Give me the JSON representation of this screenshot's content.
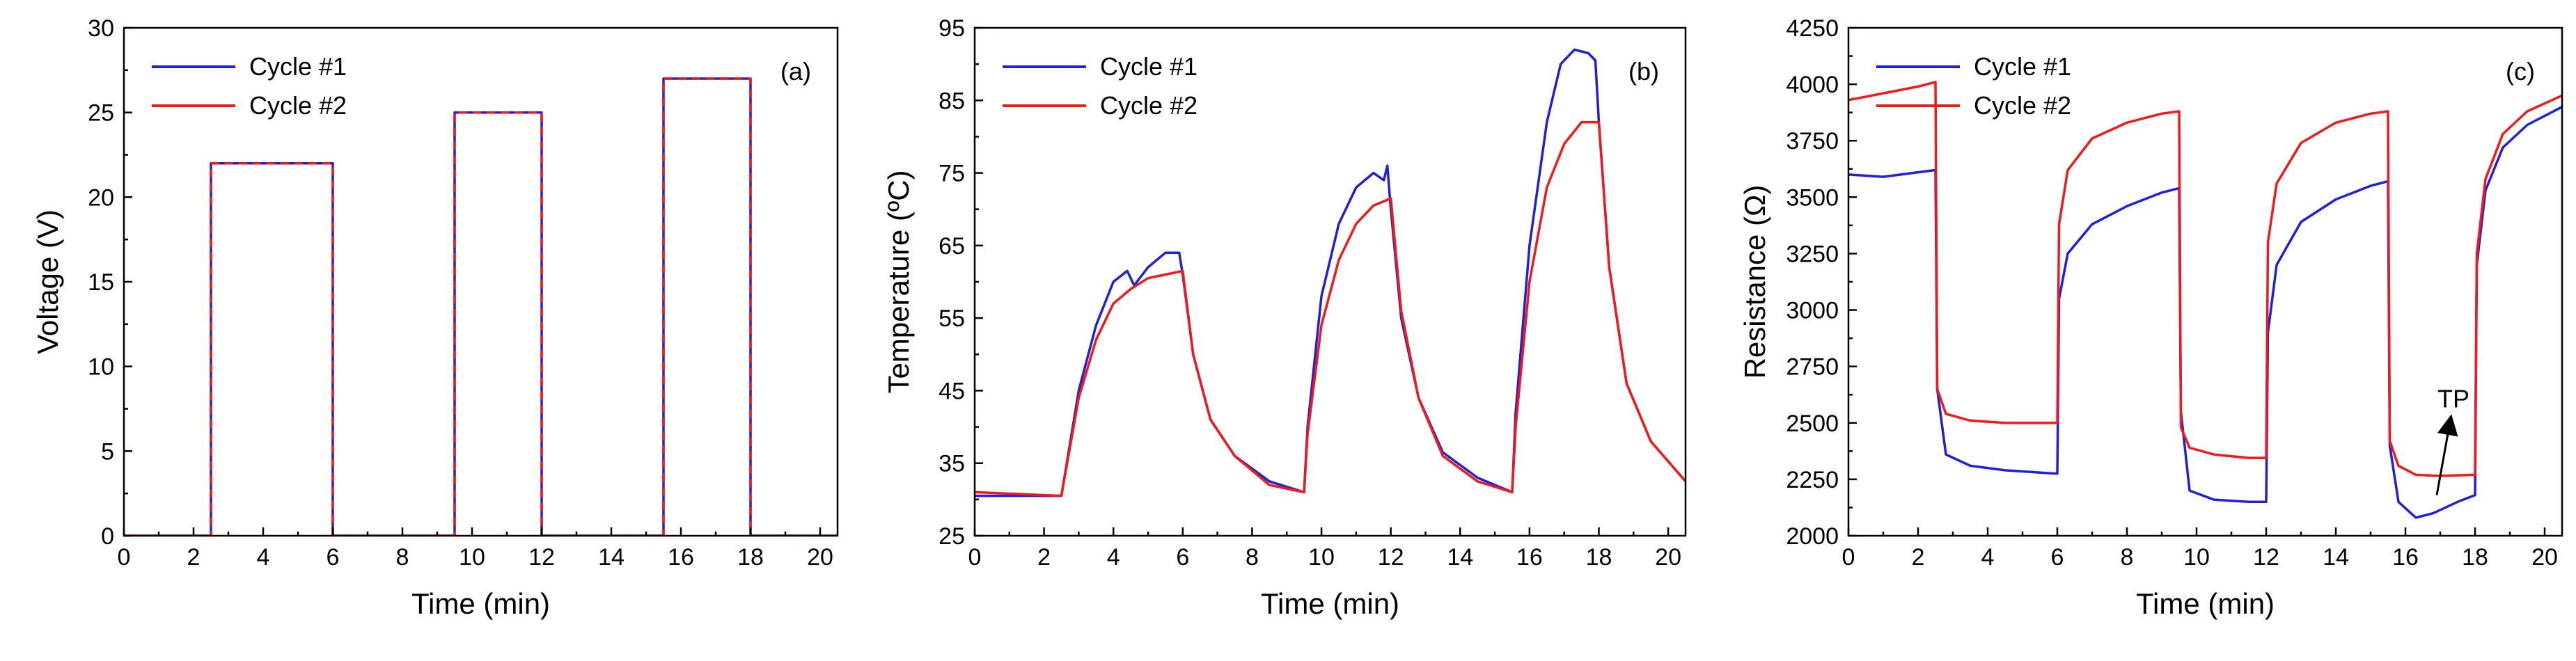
{
  "colors": {
    "cycle1": "#1f1fe0",
    "cycle2": "#f01a1a"
  },
  "chart_data": [
    {
      "id": "a",
      "type": "line",
      "panel_label": "(a)",
      "xlabel": "Time (min)",
      "ylabel": "Voltage (V)",
      "xlim": [
        0,
        20.5
      ],
      "ylim": [
        0,
        30
      ],
      "xticks": [
        0,
        2,
        4,
        6,
        8,
        10,
        12,
        14,
        16,
        18,
        20
      ],
      "yticks": [
        0,
        5,
        10,
        15,
        20,
        25,
        30
      ],
      "legend_position": "top-left",
      "series": [
        {
          "name": "Cycle #1",
          "color": "#1f1fe0",
          "dashed": false,
          "x": [
            0,
            2.5,
            2.5,
            6,
            6,
            9.5,
            9.5,
            12,
            12,
            15.5,
            15.5,
            18,
            18,
            20.5
          ],
          "y": [
            0,
            0,
            22,
            22,
            0,
            0,
            25,
            25,
            0,
            0,
            27,
            27,
            0,
            0
          ]
        },
        {
          "name": "Cycle #2",
          "color": "#f01a1a",
          "dashed": true,
          "x": [
            0,
            2.5,
            2.5,
            6,
            6,
            9.5,
            9.5,
            12,
            12,
            15.5,
            15.5,
            18,
            18,
            20.5
          ],
          "y": [
            0,
            0,
            22,
            22,
            0,
            0,
            25,
            25,
            0,
            0,
            27,
            27,
            0,
            0
          ]
        }
      ]
    },
    {
      "id": "b",
      "type": "line",
      "panel_label": "(b)",
      "xlabel": "Time (min)",
      "ylabel": "Temperature (ºC)",
      "xlim": [
        0,
        20.5
      ],
      "ylim": [
        25,
        95
      ],
      "xticks": [
        0,
        2,
        4,
        6,
        8,
        10,
        12,
        14,
        16,
        18,
        20
      ],
      "yticks": [
        25,
        35,
        45,
        55,
        65,
        75,
        85,
        95
      ],
      "legend_position": "top-left",
      "series": [
        {
          "name": "Cycle #1",
          "color": "#1f1fe0",
          "x": [
            0,
            2.5,
            3.0,
            3.5,
            4.0,
            4.4,
            4.6,
            5.0,
            5.5,
            5.9,
            6.0,
            6.3,
            6.8,
            7.5,
            8.5,
            9.5,
            9.6,
            10.0,
            10.5,
            11.0,
            11.5,
            11.8,
            11.9,
            12.0,
            12.3,
            12.8,
            13.5,
            14.5,
            15.5,
            15.6,
            16.0,
            16.5,
            16.9,
            17.3,
            17.7,
            17.9,
            18.0,
            18.3,
            18.8,
            19.5,
            20.5
          ],
          "y": [
            30.5,
            30.5,
            45,
            54,
            60,
            61.5,
            59.5,
            62,
            64,
            64,
            61,
            50,
            41,
            36,
            32.5,
            31,
            40,
            58,
            68,
            73,
            75,
            74,
            76,
            70,
            55,
            44,
            36.5,
            33,
            31,
            42,
            65,
            82,
            90,
            92,
            91.5,
            90.5,
            82,
            62,
            46,
            38,
            32.5
          ]
        },
        {
          "name": "Cycle #2",
          "color": "#f01a1a",
          "x": [
            0,
            2.5,
            3.0,
            3.5,
            4.0,
            4.5,
            5.0,
            5.5,
            6.0,
            6.3,
            6.8,
            7.5,
            8.5,
            9.5,
            9.6,
            10.0,
            10.5,
            11.0,
            11.5,
            12.0,
            12.3,
            12.8,
            13.5,
            14.5,
            15.5,
            15.6,
            16.0,
            16.5,
            17.0,
            17.5,
            18.0,
            18.3,
            18.8,
            19.5,
            20.5
          ],
          "y": [
            31,
            30.5,
            44,
            52,
            57,
            59,
            60.5,
            61,
            61.5,
            50,
            41,
            36,
            32,
            31,
            39,
            54,
            63,
            68,
            70.5,
            71.5,
            56,
            44,
            36,
            32.5,
            31,
            40,
            60,
            73,
            79,
            82,
            82,
            62,
            46,
            38,
            32.5
          ]
        }
      ]
    },
    {
      "id": "c",
      "type": "line",
      "panel_label": "(c)",
      "xlabel": "Time (min)",
      "ylabel": "Resistance (Ω)",
      "xlim": [
        0,
        20.5
      ],
      "ylim": [
        2000,
        4250
      ],
      "xticks": [
        0,
        2,
        4,
        6,
        8,
        10,
        12,
        14,
        16,
        18,
        20
      ],
      "yticks": [
        2000,
        2250,
        2500,
        2750,
        3000,
        3250,
        3500,
        3750,
        4000,
        4250
      ],
      "legend_position": "top-left",
      "annotation": {
        "text": "TP",
        "arrow_from": [
          16.9,
          2180
        ],
        "arrow_to": [
          17.3,
          2520
        ]
      },
      "series": [
        {
          "name": "Cycle #1",
          "color": "#1f1fe0",
          "x": [
            0,
            1.0,
            2.0,
            2.5,
            2.55,
            2.8,
            3.5,
            4.5,
            6.0,
            6.05,
            6.3,
            7.0,
            8.0,
            9.0,
            9.5,
            9.55,
            9.8,
            10.5,
            11.5,
            12.0,
            12.05,
            12.3,
            13.0,
            14.0,
            15.0,
            15.5,
            15.55,
            15.8,
            16.3,
            16.8,
            17.5,
            18.0,
            18.05,
            18.3,
            18.8,
            19.5,
            20.5
          ],
          "y": [
            3600,
            3590,
            3610,
            3620,
            2650,
            2360,
            2310,
            2290,
            2275,
            3050,
            3250,
            3380,
            3460,
            3520,
            3540,
            2550,
            2200,
            2160,
            2150,
            2150,
            2900,
            3200,
            3390,
            3490,
            3550,
            3570,
            2400,
            2150,
            2080,
            2100,
            2150,
            2180,
            3200,
            3530,
            3720,
            3820,
            3900
          ]
        },
        {
          "name": "Cycle #2",
          "color": "#f01a1a",
          "x": [
            0,
            1.0,
            2.0,
            2.5,
            2.55,
            2.8,
            3.5,
            4.5,
            6.0,
            6.05,
            6.3,
            7.0,
            8.0,
            9.0,
            9.5,
            9.55,
            9.8,
            10.5,
            11.5,
            12.0,
            12.05,
            12.3,
            13.0,
            14.0,
            15.0,
            15.5,
            15.55,
            15.8,
            16.3,
            17.0,
            18.0,
            18.05,
            18.3,
            18.8,
            19.5,
            20.5
          ],
          "y": [
            3930,
            3960,
            3990,
            4010,
            2650,
            2540,
            2510,
            2500,
            2500,
            3380,
            3620,
            3760,
            3830,
            3870,
            3880,
            2480,
            2390,
            2360,
            2345,
            2345,
            3300,
            3560,
            3740,
            3830,
            3870,
            3880,
            2420,
            2310,
            2270,
            2265,
            2270,
            3250,
            3580,
            3780,
            3880,
            3950
          ]
        }
      ]
    }
  ]
}
